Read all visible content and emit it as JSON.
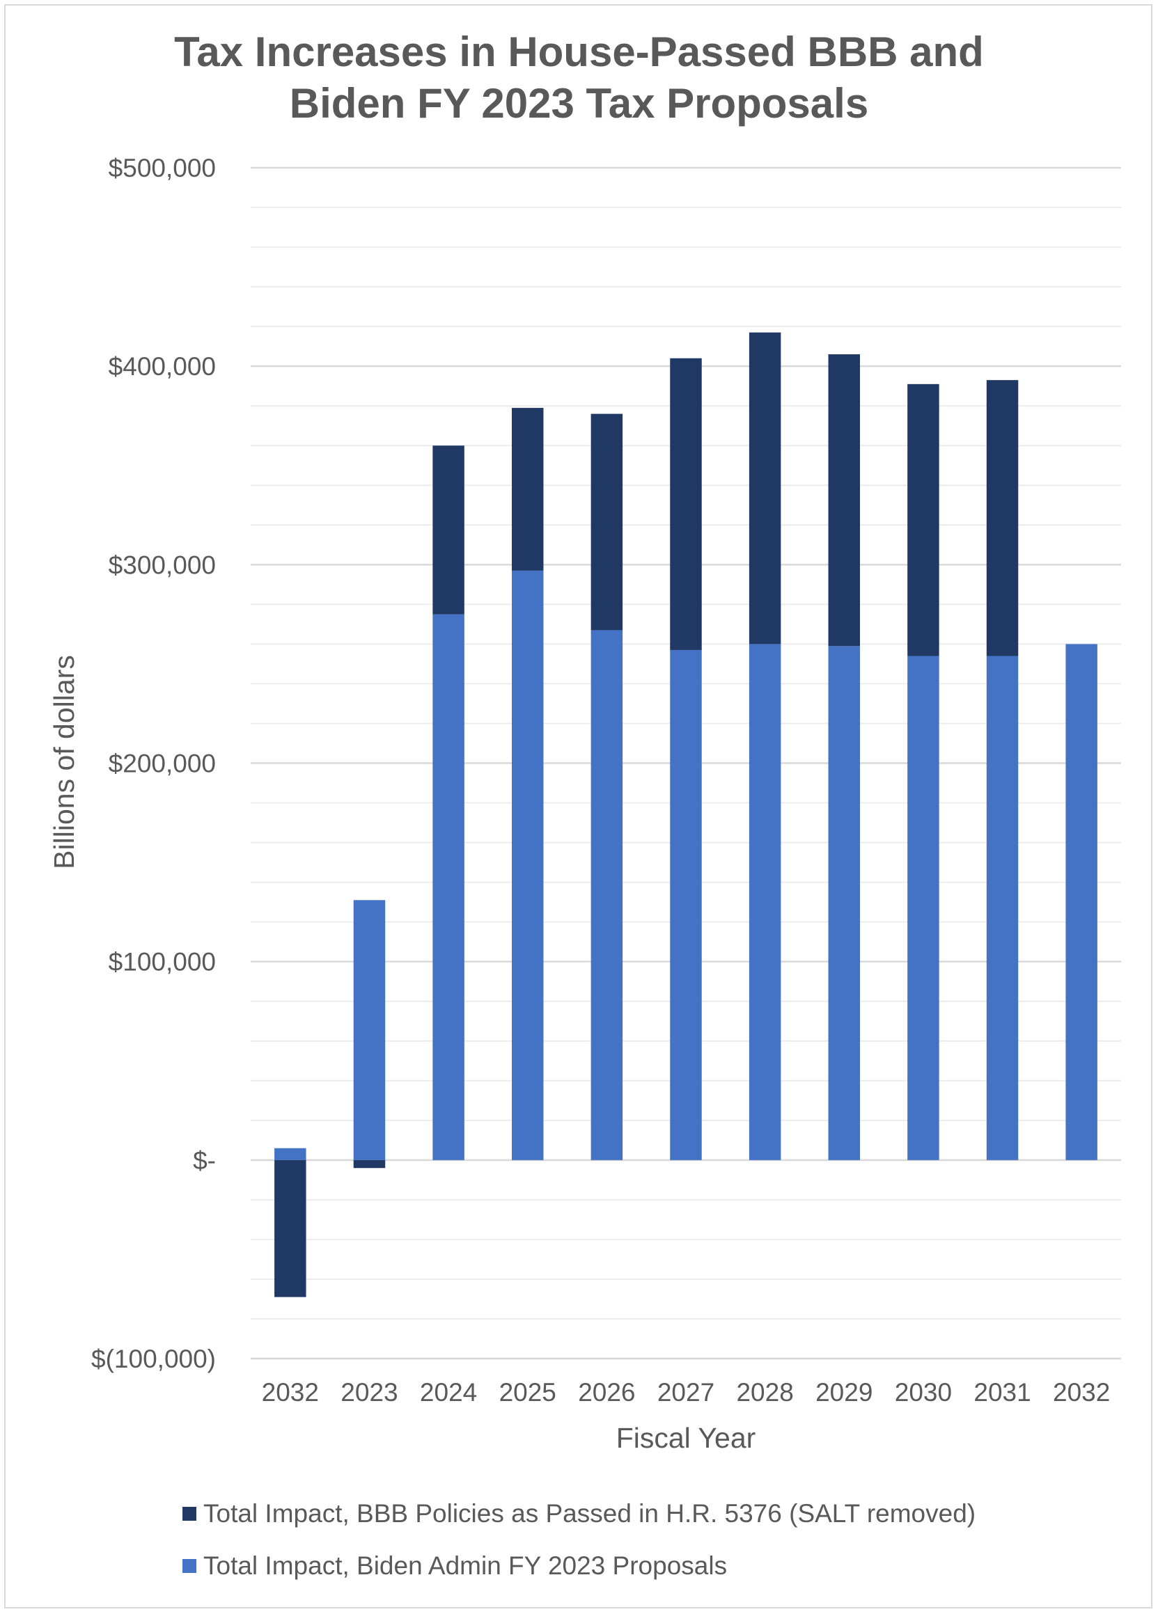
{
  "chart_data": {
    "type": "bar",
    "stacked": true,
    "title_lines": [
      "Tax Increases in House-Passed BBB and",
      "Biden FY 2023 Tax Proposals"
    ],
    "xlabel": "Fiscal Year",
    "ylabel": "Billions of dollars",
    "categories": [
      "2032",
      "2023",
      "2024",
      "2025",
      "2026",
      "2027",
      "2028",
      "2029",
      "2030",
      "2031",
      "2032"
    ],
    "series": [
      {
        "name": "Total Impact, BBB Policies as Passed in H.R. 5376 (SALT removed)",
        "color": "#1f3864",
        "values": [
          -69000,
          -4000,
          85000,
          82000,
          109000,
          147000,
          157000,
          147000,
          137000,
          139000,
          0
        ]
      },
      {
        "name": "Total Impact, Biden Admin FY 2023 Proposals",
        "color": "#4472c4",
        "values": [
          6000,
          131000,
          275000,
          297000,
          267000,
          257000,
          260000,
          259000,
          254000,
          254000,
          260000
        ]
      }
    ],
    "ylim": [
      -100000,
      500000
    ],
    "yticks": [
      500000,
      400000,
      300000,
      200000,
      100000,
      0,
      -100000
    ],
    "ytick_labels": [
      "$500,000",
      "$400,000",
      "$300,000",
      "$200,000",
      "$100,000",
      "$-",
      "$(100,000)"
    ],
    "minor_gridlines": true,
    "legend_position": "bottom",
    "colors": {
      "text": "#595959",
      "gridline": "#d9d9d9",
      "minor_gridline": "#ececec"
    }
  }
}
